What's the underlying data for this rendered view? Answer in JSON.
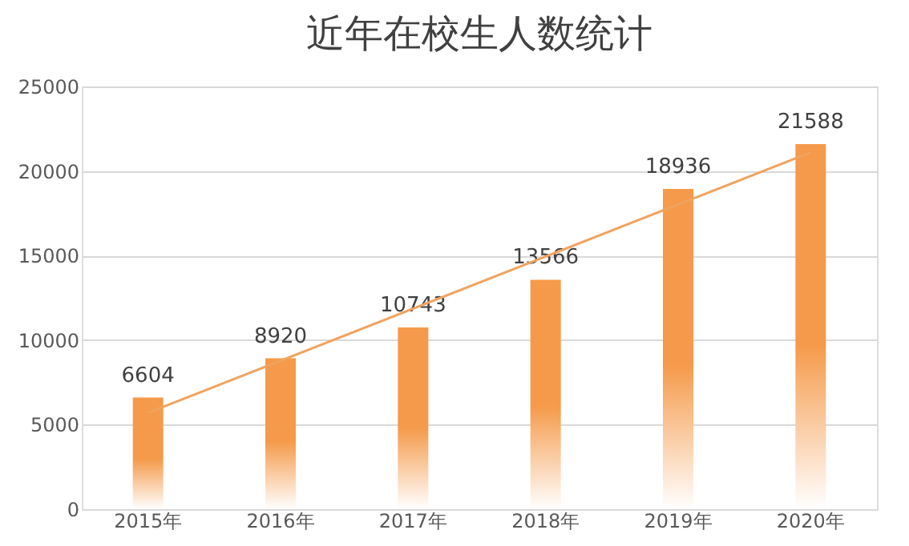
{
  "chart_data": {
    "type": "bar",
    "title": "近年在校生人数统计",
    "categories": [
      "2015年",
      "2016年",
      "2017年",
      "2018年",
      "2019年",
      "2020年"
    ],
    "series": [
      {
        "color": "#f59a4a",
        "values": [
          6604,
          8920,
          10743,
          13566,
          18936,
          21588
        ],
        "value_labels": [
          "6604",
          "8920",
          "10743",
          "13566",
          "18936",
          "21588"
        ]
      },
      {
        "type": "line",
        "color": "#f0a35e",
        "x": [
          "2015年",
          "2020年"
        ],
        "values": [
          5700,
          21100
        ]
      }
    ],
    "ylim": [
      0,
      25000
    ],
    "yticks": [
      0,
      5000,
      10000,
      15000,
      20000,
      25000
    ],
    "grid": "y"
  }
}
